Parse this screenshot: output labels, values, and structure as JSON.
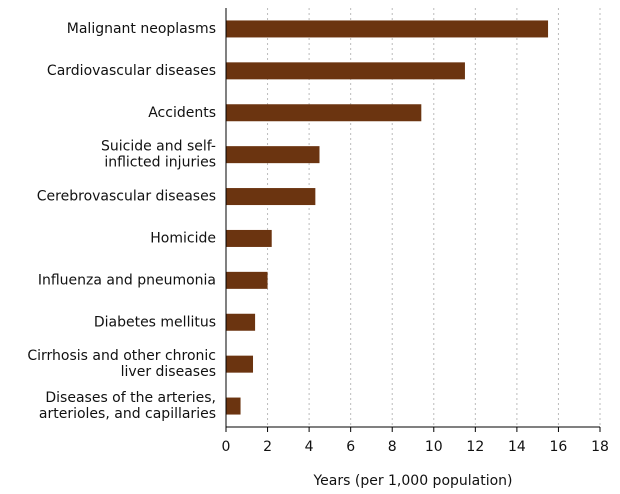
{
  "chart_data": {
    "type": "hbar",
    "x_label": "Years (per 1,000 population)",
    "categories": [
      "Malignant neoplasms",
      "Cardiovascular diseases",
      "Accidents",
      "Suicide and self-\ninflicted injuries",
      "Cerebrovascular diseases",
      "Homicide",
      "Influenza and pneumonia",
      "Diabetes mellitus",
      "Cirrhosis and other chronic\nliver diseases",
      "Diseases of the arteries,\narterioles, and capillaries"
    ],
    "values": [
      15.5,
      11.5,
      9.4,
      4.5,
      4.3,
      2.2,
      2.0,
      1.4,
      1.3,
      0.7
    ],
    "color": "#6b3410",
    "xlim": [
      0,
      18
    ],
    "xticks": [
      0,
      2,
      4,
      6,
      8,
      10,
      12,
      14,
      16,
      18
    ],
    "grid": true
  }
}
